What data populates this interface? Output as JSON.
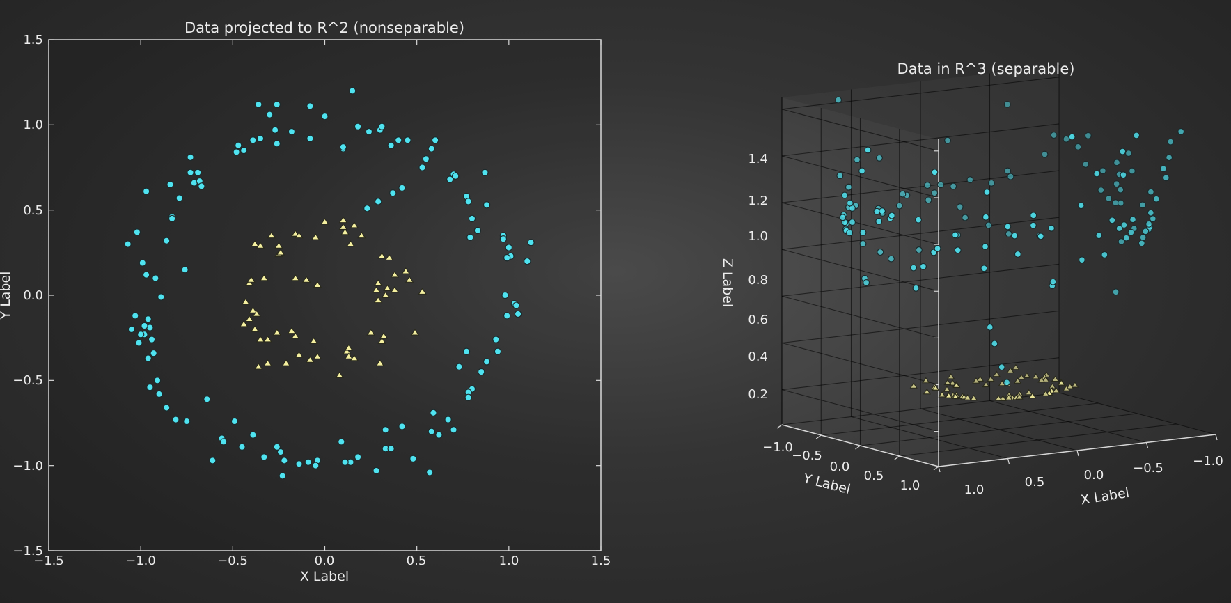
{
  "chart_data": [
    {
      "type": "scatter",
      "title": "Data projected to R^2 (nonseparable)",
      "xlabel": "X Label",
      "ylabel": "Y Label",
      "xlim": [
        -1.5,
        1.5
      ],
      "ylim": [
        -1.5,
        1.5
      ],
      "xticks": [
        "−1.5",
        "−1.0",
        "−0.5",
        "0.0",
        "0.5",
        "1.0",
        "1.5"
      ],
      "yticks": [
        "−1.5",
        "−1.0",
        "−0.5",
        "0.0",
        "0.5",
        "1.0",
        "1.5"
      ],
      "grid": false,
      "series": [
        {
          "marker": "circle",
          "color": "#4fe3f0",
          "x": [
            -0.36,
            -0.3,
            -0.27,
            -0.26,
            -0.35,
            -0.18,
            -0.08,
            -0.08,
            0.0,
            0.15,
            0.1,
            0.18,
            0.24,
            0.3,
            0.31,
            0.4,
            0.45,
            0.36,
            0.6,
            0.58,
            0.55,
            0.53,
            0.7,
            0.71,
            0.68,
            0.77,
            0.78,
            0.8,
            0.87,
            0.88,
            0.83,
            0.79,
            0.97,
            0.97,
            1.0,
            1.01,
            0.99,
            1.1,
            1.12,
            0.98,
            1.03,
            1.04,
            1.05,
            0.99,
            0.93,
            0.94,
            0.88,
            0.85,
            0.8,
            0.78,
            0.78,
            0.73,
            0.77,
            0.67,
            0.7,
            0.62,
            0.59,
            0.58,
            0.57,
            0.48,
            0.42,
            0.33,
            0.33,
            0.36,
            0.28,
            0.18,
            0.14,
            0.11,
            0.09,
            -0.04,
            -0.05,
            -0.09,
            -0.14,
            -0.22,
            -0.24,
            -0.26,
            -0.33,
            -0.23,
            -0.39,
            -0.45,
            -0.49,
            -0.56,
            -0.55,
            -0.61,
            -0.64,
            -0.75,
            -0.81,
            -0.86,
            -0.9,
            -0.91,
            -0.95,
            -0.96,
            -0.93,
            -0.95,
            -0.98,
            -0.98,
            -1.0,
            -1.03,
            -1.05,
            -0.89,
            -0.92,
            -0.97,
            -0.99,
            -0.94,
            -0.96,
            -1.01,
            -1.07,
            -1.02,
            -0.86,
            -0.76,
            -0.83,
            -0.79,
            -0.83,
            -0.84,
            -0.97,
            -0.71,
            -0.73,
            -0.69,
            -0.68,
            -0.67,
            -0.73,
            -0.48,
            -0.47,
            -0.44,
            -0.39,
            -0.26,
            0.1,
            0.23,
            0.29,
            0.37,
            0.42
          ],
          "y": [
            1.12,
            1.06,
            0.97,
            0.89,
            0.92,
            0.96,
            0.92,
            1.11,
            1.05,
            1.2,
            0.86,
            0.99,
            0.96,
            0.97,
            0.99,
            0.91,
            0.91,
            0.88,
            0.91,
            0.86,
            0.8,
            0.75,
            0.71,
            0.7,
            0.68,
            0.58,
            0.55,
            0.45,
            0.72,
            0.53,
            0.38,
            0.34,
            0.35,
            0.33,
            0.28,
            0.23,
            0.22,
            0.2,
            0.31,
            0.0,
            -0.05,
            -0.06,
            -0.11,
            -0.12,
            -0.26,
            -0.33,
            -0.39,
            -0.45,
            -0.55,
            -0.57,
            -0.6,
            -0.42,
            -0.33,
            -0.73,
            -0.79,
            -0.82,
            -0.69,
            -0.8,
            -1.04,
            -0.96,
            -0.77,
            -0.79,
            -0.9,
            -0.9,
            -1.03,
            -0.95,
            -0.98,
            -0.98,
            -0.86,
            -0.97,
            -1.0,
            -0.98,
            -0.99,
            -0.97,
            -0.92,
            -0.89,
            -0.95,
            -1.06,
            -0.82,
            -0.89,
            -0.74,
            -0.84,
            -0.86,
            -0.97,
            -0.61,
            -0.74,
            -0.73,
            -0.66,
            -0.58,
            -0.5,
            -0.54,
            -0.37,
            -0.34,
            -0.19,
            -0.23,
            -0.18,
            -0.23,
            -0.12,
            -0.2,
            -0.01,
            0.1,
            0.12,
            0.19,
            -0.26,
            -0.14,
            -0.28,
            0.3,
            0.37,
            0.32,
            0.15,
            0.46,
            0.57,
            0.45,
            0.65,
            0.61,
            0.66,
            0.72,
            0.72,
            0.67,
            0.64,
            0.81,
            0.84,
            0.88,
            0.85,
            0.91,
            1.12,
            0.87,
            0.51,
            0.55,
            0.6,
            0.63
          ]
        },
        {
          "marker": "triangle",
          "color": "#f5f0a0",
          "x": [
            -0.38,
            -0.29,
            -0.35,
            -0.33,
            -0.25,
            -0.25,
            -0.16,
            -0.16,
            -0.14,
            -0.05,
            0.0,
            0.1,
            0.11,
            0.1,
            0.14,
            0.2,
            0.16,
            0.31,
            0.35,
            0.29,
            0.28,
            0.38,
            0.44,
            0.33,
            0.46,
            0.53,
            0.34,
            0.38,
            0.29,
            0.25,
            0.31,
            0.32,
            0.49,
            0.3,
            0.12,
            0.13,
            0.16,
            0.08,
            -0.04,
            -0.06,
            -0.14,
            -0.21,
            -0.26,
            -0.31,
            -0.36,
            -0.18,
            -0.31,
            -0.35,
            -0.38,
            -0.41,
            -0.44,
            -0.43,
            -0.39,
            -0.37,
            -0.41,
            -0.4,
            -0.24,
            -0.16,
            -0.1,
            -0.04,
            -0.16,
            -0.08,
            0.13
          ],
          "y": [
            0.3,
            0.35,
            0.29,
            0.1,
            0.29,
            0.24,
            0.36,
            0.36,
            0.35,
            0.34,
            0.43,
            0.44,
            0.37,
            0.4,
            0.3,
            0.35,
            0.41,
            0.23,
            0.22,
            0.07,
            0.03,
            0.12,
            0.14,
            0.0,
            0.09,
            0.02,
            0.04,
            0.03,
            -0.03,
            -0.22,
            -0.27,
            -0.24,
            -0.22,
            -0.4,
            -0.33,
            -0.36,
            -0.37,
            -0.47,
            -0.36,
            -0.27,
            -0.35,
            -0.4,
            -0.22,
            -0.4,
            -0.42,
            -0.21,
            -0.26,
            -0.26,
            -0.2,
            -0.14,
            -0.17,
            -0.04,
            -0.09,
            -0.11,
            0.07,
            0.09,
            0.25,
            0.1,
            0.09,
            0.06,
            -0.24,
            -0.38,
            -0.31
          ]
        }
      ]
    },
    {
      "type": "scatter",
      "subtype": "scatter3d",
      "title": "Data in R^3 (separable)",
      "xlabel": "X Label",
      "ylabel": "Y Label",
      "zlabel": "Z Label",
      "xlim": [
        -1.1,
        1.1
      ],
      "ylim": [
        -1.1,
        1.1
      ],
      "zlim": [
        0.05,
        1.45
      ],
      "xticks": [
        "1.0",
        "0.5",
        "0.0",
        "−0.5",
        "−1.0"
      ],
      "yticks": [
        "−1.0",
        "−0.5",
        "0.0",
        "0.5",
        "1.0"
      ],
      "zticks": [
        "0.2",
        "0.4",
        "0.6",
        "0.8",
        "1.0",
        "1.2",
        "1.4"
      ],
      "grid": true,
      "series": [
        {
          "marker": "circle",
          "color": "#4fe3f0",
          "x": [
            -0.36,
            -0.3,
            -0.27,
            -0.26,
            -0.35,
            -0.18,
            -0.08,
            -0.08,
            0.0,
            0.15,
            0.1,
            0.18,
            0.24,
            0.3,
            0.31,
            0.4,
            0.45,
            0.36,
            0.6,
            0.58,
            0.55,
            0.53,
            0.7,
            0.71,
            0.68,
            0.77,
            0.78,
            0.8,
            0.87,
            0.88,
            0.83,
            0.79,
            0.97,
            0.97,
            1.0,
            1.01,
            0.99,
            1.1,
            1.12,
            0.98,
            1.03,
            1.04,
            1.05,
            0.99,
            0.93,
            0.94,
            0.88,
            0.85,
            0.8,
            0.78,
            0.78,
            0.73,
            0.77,
            0.67,
            0.7,
            0.62,
            0.59,
            0.58,
            0.57,
            0.48,
            0.42,
            0.33,
            0.33,
            0.36,
            0.28,
            0.18,
            0.14,
            0.11,
            0.09,
            -0.04,
            -0.05,
            -0.09,
            -0.14,
            -0.22,
            -0.24,
            -0.26,
            -0.33,
            -0.23,
            -0.39,
            -0.45,
            -0.49,
            -0.56,
            -0.55,
            -0.61,
            -0.64,
            -0.75,
            -0.81,
            -0.86,
            -0.9,
            -0.91,
            -0.95,
            -0.96,
            -0.93,
            -0.95,
            -0.98,
            -0.98,
            -1.0,
            -1.03,
            -1.05,
            -0.89,
            -0.92,
            -0.97,
            -0.99,
            -0.94,
            -0.96,
            -1.01,
            -1.07,
            -1.02,
            -0.86,
            -0.76,
            -0.83,
            -0.79,
            -0.83,
            -0.84,
            -0.97,
            -0.71,
            -0.73,
            -0.69,
            -0.68,
            -0.67,
            -0.73,
            -0.48,
            -0.47,
            -0.44,
            -0.39,
            -0.26,
            0.1,
            0.23,
            0.29,
            0.37,
            0.42
          ],
          "y": [
            1.12,
            1.06,
            0.97,
            0.89,
            0.92,
            0.96,
            0.92,
            1.11,
            1.05,
            1.2,
            0.86,
            0.99,
            0.96,
            0.97,
            0.99,
            0.91,
            0.91,
            0.88,
            0.91,
            0.86,
            0.8,
            0.75,
            0.71,
            0.7,
            0.68,
            0.58,
            0.55,
            0.45,
            0.72,
            0.53,
            0.38,
            0.34,
            0.35,
            0.33,
            0.28,
            0.23,
            0.22,
            0.2,
            0.31,
            0.0,
            -0.05,
            -0.06,
            -0.11,
            -0.12,
            -0.26,
            -0.33,
            -0.39,
            -0.45,
            -0.55,
            -0.57,
            -0.6,
            -0.42,
            -0.33,
            -0.73,
            -0.79,
            -0.82,
            -0.69,
            -0.8,
            -1.04,
            -0.96,
            -0.77,
            -0.79,
            -0.9,
            -0.9,
            -1.03,
            -0.95,
            -0.98,
            -0.98,
            -0.86,
            -0.97,
            -1.0,
            -0.98,
            -0.99,
            -0.97,
            -0.92,
            -0.89,
            -0.95,
            -1.06,
            -0.82,
            -0.89,
            -0.74,
            -0.84,
            -0.86,
            -0.97,
            -0.61,
            -0.74,
            -0.73,
            -0.66,
            -0.58,
            -0.5,
            -0.54,
            -0.37,
            -0.34,
            -0.19,
            -0.23,
            -0.18,
            -0.23,
            -0.12,
            -0.2,
            -0.01,
            0.1,
            0.12,
            0.19,
            -0.26,
            -0.14,
            -0.28,
            0.3,
            0.37,
            0.32,
            0.15,
            0.46,
            0.57,
            0.45,
            0.65,
            0.61,
            0.66,
            0.72,
            0.72,
            0.67,
            0.64,
            0.81,
            0.84,
            0.88,
            0.85,
            0.91,
            1.12,
            0.87,
            0.51,
            0.55,
            0.6,
            0.63
          ]
        },
        {
          "marker": "triangle",
          "color": "#f5f0a0",
          "x": [
            -0.38,
            -0.29,
            -0.35,
            -0.33,
            -0.25,
            -0.25,
            -0.16,
            -0.16,
            -0.14,
            -0.05,
            0.0,
            0.1,
            0.11,
            0.1,
            0.14,
            0.2,
            0.16,
            0.31,
            0.35,
            0.29,
            0.28,
            0.38,
            0.44,
            0.33,
            0.46,
            0.53,
            0.34,
            0.38,
            0.29,
            0.25,
            0.31,
            0.32,
            0.49,
            0.3,
            0.12,
            0.13,
            0.16,
            0.08,
            -0.04,
            -0.06,
            -0.14,
            -0.21,
            -0.26,
            -0.31,
            -0.36,
            -0.18,
            -0.31,
            -0.35,
            -0.38,
            -0.41,
            -0.44,
            -0.43,
            -0.39,
            -0.37,
            -0.41,
            -0.4,
            -0.24,
            -0.16,
            -0.1,
            -0.04,
            -0.16,
            -0.08,
            0.13
          ],
          "y": [
            0.3,
            0.35,
            0.29,
            0.1,
            0.29,
            0.24,
            0.36,
            0.36,
            0.35,
            0.34,
            0.43,
            0.44,
            0.37,
            0.4,
            0.3,
            0.35,
            0.41,
            0.23,
            0.22,
            0.07,
            0.03,
            0.12,
            0.14,
            0.0,
            0.09,
            0.02,
            0.04,
            0.03,
            -0.03,
            -0.22,
            -0.27,
            -0.24,
            -0.22,
            -0.4,
            -0.33,
            -0.36,
            -0.37,
            -0.47,
            -0.36,
            -0.27,
            -0.35,
            -0.4,
            -0.22,
            -0.4,
            -0.42,
            -0.21,
            -0.26,
            -0.26,
            -0.2,
            -0.14,
            -0.17,
            -0.04,
            -0.09,
            -0.11,
            0.07,
            0.09,
            0.25,
            0.1,
            0.09,
            0.06,
            -0.24,
            -0.38,
            -0.31
          ]
        }
      ]
    }
  ]
}
